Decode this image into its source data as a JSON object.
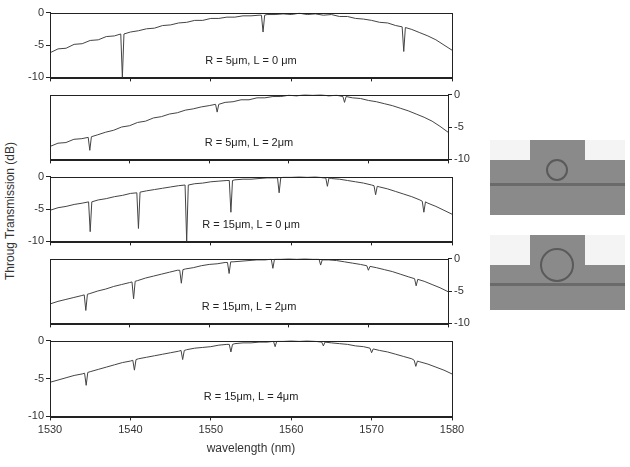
{
  "chart_data": [
    {
      "type": "line",
      "annotation": "R = 5μm, L = 0 μm",
      "x": [
        1530,
        1531,
        1532,
        1533,
        1534,
        1535,
        1536,
        1537,
        1538,
        1538.8,
        1539,
        1539.2,
        1540,
        1541,
        1542,
        1543,
        1544,
        1545,
        1546,
        1547,
        1548,
        1549,
        1550,
        1551,
        1552,
        1553,
        1554,
        1555,
        1556,
        1556.3,
        1556.5,
        1556.7,
        1557,
        1558,
        1559,
        1560,
        1561,
        1562,
        1563,
        1564,
        1565,
        1566,
        1567,
        1568,
        1569,
        1570,
        1571,
        1572,
        1573,
        1573.8,
        1574,
        1574.2,
        1575,
        1576,
        1577,
        1578,
        1579,
        1580
      ],
      "series": [
        {
          "color": "#444444",
          "values": [
            -6.2,
            -5.6,
            -5.5,
            -4.9,
            -4.8,
            -4.3,
            -4.2,
            -3.7,
            -3.6,
            -3.3,
            -10,
            -3.3,
            -3.0,
            -2.8,
            -2.5,
            -2.4,
            -2.0,
            -1.9,
            -1.6,
            -1.5,
            -1.2,
            -1.2,
            -0.9,
            -0.9,
            -0.7,
            -0.7,
            -0.5,
            -0.5,
            -0.4,
            -0.4,
            -3.0,
            -0.4,
            -0.3,
            -0.3,
            -0.2,
            -0.3,
            -0.1,
            -0.3,
            -0.2,
            -0.4,
            -0.3,
            -0.6,
            -0.6,
            -0.9,
            -1.0,
            -1.2,
            -1.5,
            -1.6,
            -2.0,
            -2.2,
            -6.0,
            -2.3,
            -2.6,
            -3.1,
            -3.6,
            -4.2,
            -5.0,
            -5.8
          ]
        }
      ],
      "xlim": [
        1530,
        1580
      ],
      "xticks": [
        1530,
        1540,
        1550,
        1560,
        1570,
        1580
      ],
      "ylim": [
        -10,
        0
      ],
      "yticks": [
        -10,
        -5,
        0
      ],
      "tick_labels": "y"
    },
    {
      "type": "line",
      "annotation": "R = 5μm, L = 2μm",
      "x": [
        1530,
        1531,
        1532,
        1533,
        1534,
        1534.8,
        1535,
        1535.2,
        1536,
        1537,
        1538,
        1539,
        1540,
        1541,
        1542,
        1543,
        1544,
        1545,
        1546,
        1547,
        1548,
        1549,
        1550,
        1550.8,
        1551,
        1551.2,
        1552,
        1553,
        1554,
        1555,
        1556,
        1557,
        1558,
        1559,
        1560,
        1561,
        1562,
        1563,
        1564,
        1565,
        1566,
        1566.8,
        1567,
        1567.2,
        1568,
        1569,
        1570,
        1571,
        1572,
        1573,
        1574,
        1575,
        1576,
        1577,
        1578,
        1579,
        1580
      ],
      "series": [
        {
          "color": "#444444",
          "axis": "y2",
          "values": [
            -8.0,
            -7.5,
            -7.4,
            -6.9,
            -6.8,
            -6.6,
            -8.6,
            -6.5,
            -6.2,
            -5.8,
            -5.5,
            -5.0,
            -4.8,
            -4.3,
            -4.1,
            -3.6,
            -3.4,
            -3.0,
            -2.8,
            -2.4,
            -2.2,
            -1.9,
            -1.7,
            -1.5,
            -2.7,
            -1.5,
            -1.2,
            -1.1,
            -0.8,
            -0.8,
            -0.5,
            -0.5,
            -0.3,
            -0.3,
            -0.1,
            -0.2,
            0.0,
            -0.1,
            0.0,
            -0.2,
            -0.1,
            -0.3,
            -1.2,
            -0.3,
            -0.5,
            -0.6,
            -0.9,
            -1.1,
            -1.4,
            -1.7,
            -2.1,
            -2.5,
            -3.0,
            -3.5,
            -4.1,
            -4.9,
            -5.8
          ]
        }
      ],
      "xlim": [
        1530,
        1580
      ],
      "xticks": [
        1530,
        1540,
        1550,
        1560,
        1570,
        1580
      ],
      "y2lim": [
        -10,
        0
      ],
      "y2ticks": [
        -10,
        -5,
        0
      ],
      "tick_labels": "y"
    },
    {
      "type": "line",
      "annotation": "R = 15μm, L = 0 μm",
      "ylabel": "Throug Transmission (dB)",
      "x": [
        1530,
        1531,
        1532,
        1533,
        1534,
        1534.8,
        1535,
        1535.2,
        1536,
        1537,
        1538,
        1539,
        1540,
        1540.8,
        1541,
        1541.2,
        1542,
        1543,
        1544,
        1545,
        1546,
        1546.8,
        1547,
        1547.2,
        1548,
        1549,
        1550,
        1551,
        1552,
        1552.3,
        1552.5,
        1552.7,
        1553,
        1554,
        1555,
        1556,
        1557,
        1558,
        1558.3,
        1558.5,
        1558.7,
        1559,
        1560,
        1561,
        1562,
        1563,
        1564,
        1564.3,
        1564.5,
        1564.7,
        1565,
        1566,
        1567,
        1568,
        1569,
        1570,
        1570.3,
        1570.5,
        1570.7,
        1571,
        1572,
        1573,
        1574,
        1575,
        1576,
        1576.3,
        1576.5,
        1576.7,
        1577,
        1578,
        1579,
        1580
      ],
      "series": [
        {
          "color": "#444444",
          "values": [
            -5.2,
            -4.8,
            -4.6,
            -4.3,
            -4.1,
            -3.9,
            -8.5,
            -3.9,
            -3.6,
            -3.4,
            -3.1,
            -2.9,
            -2.6,
            -2.5,
            -8.0,
            -2.4,
            -2.2,
            -2.0,
            -1.8,
            -1.6,
            -1.4,
            -1.3,
            -10.0,
            -1.3,
            -1.1,
            -1.0,
            -0.8,
            -0.7,
            -0.6,
            -0.6,
            -5.5,
            -0.6,
            -0.5,
            -0.4,
            -0.4,
            -0.3,
            -0.2,
            -0.2,
            -0.2,
            -2.5,
            -0.2,
            -0.1,
            -0.1,
            0.0,
            -0.1,
            0.0,
            -0.2,
            -0.2,
            -1.5,
            -0.2,
            -0.3,
            -0.4,
            -0.6,
            -0.8,
            -1.0,
            -1.3,
            -1.4,
            -2.8,
            -1.5,
            -1.6,
            -1.9,
            -2.3,
            -2.7,
            -3.1,
            -3.6,
            -3.8,
            -5.5,
            -3.9,
            -4.1,
            -4.6,
            -5.2,
            -5.8
          ]
        }
      ],
      "xlim": [
        1530,
        1580
      ],
      "xticks": [
        1530,
        1540,
        1550,
        1560,
        1570,
        1580
      ],
      "ylim": [
        -10,
        0
      ],
      "yticks": [
        -10,
        -5,
        0
      ],
      "tick_labels": "y"
    },
    {
      "type": "line",
      "annotation": "R = 15μm, L = 2μm",
      "x": [
        1530,
        1531,
        1532,
        1533,
        1534,
        1534.3,
        1534.5,
        1534.7,
        1535,
        1536,
        1537,
        1538,
        1539,
        1540,
        1540.3,
        1540.5,
        1540.7,
        1541,
        1542,
        1543,
        1544,
        1545,
        1546,
        1546.3,
        1546.5,
        1546.7,
        1547,
        1548,
        1549,
        1550,
        1551,
        1552,
        1552.3,
        1552.5,
        1552.7,
        1553,
        1554,
        1555,
        1556,
        1557,
        1557.8,
        1558,
        1558.2,
        1559,
        1560,
        1561,
        1562,
        1563,
        1563.8,
        1564,
        1564.2,
        1565,
        1566,
        1567,
        1568,
        1569,
        1569.8,
        1570,
        1570.2,
        1571,
        1572,
        1573,
        1574,
        1575,
        1575.8,
        1576,
        1576.2,
        1577,
        1578,
        1579,
        1580
      ],
      "series": [
        {
          "color": "#444444",
          "axis": "y2",
          "values": [
            -7.0,
            -6.6,
            -6.3,
            -6.0,
            -5.7,
            -5.6,
            -8.0,
            -5.5,
            -5.4,
            -5.0,
            -4.7,
            -4.3,
            -4.0,
            -3.7,
            -3.6,
            -6.2,
            -3.5,
            -3.4,
            -3.0,
            -2.7,
            -2.4,
            -2.1,
            -1.8,
            -1.8,
            -3.8,
            -1.7,
            -1.6,
            -1.4,
            -1.1,
            -0.9,
            -0.8,
            -0.6,
            -0.6,
            -2.3,
            -0.5,
            -0.5,
            -0.4,
            -0.3,
            -0.2,
            -0.2,
            -0.1,
            -1.5,
            -0.1,
            -0.1,
            0.0,
            -0.1,
            0.0,
            -0.1,
            -0.1,
            -1.0,
            -0.2,
            -0.2,
            -0.3,
            -0.5,
            -0.7,
            -0.9,
            -1.1,
            -1.8,
            -1.2,
            -1.4,
            -1.7,
            -2.0,
            -2.4,
            -2.8,
            -3.1,
            -4.2,
            -3.2,
            -3.5,
            -4.0,
            -4.5,
            -5.1
          ]
        }
      ],
      "xlim": [
        1530,
        1580
      ],
      "xticks": [
        1530,
        1540,
        1550,
        1560,
        1570,
        1580
      ],
      "y2lim": [
        -10,
        0
      ],
      "y2ticks": [
        -10,
        -5,
        0
      ],
      "tick_labels": "y"
    },
    {
      "type": "line",
      "annotation": "R = 15μm, L = 4μm",
      "xlabel": "wavelength (nm)",
      "x": [
        1530,
        1531,
        1532,
        1533,
        1534,
        1534.3,
        1534.5,
        1534.7,
        1535,
        1536,
        1537,
        1538,
        1539,
        1540,
        1540.3,
        1540.5,
        1540.7,
        1541,
        1542,
        1543,
        1544,
        1545,
        1546,
        1546.3,
        1546.5,
        1546.7,
        1547,
        1548,
        1549,
        1550,
        1551,
        1552,
        1552.3,
        1552.5,
        1552.7,
        1553,
        1554,
        1555,
        1556,
        1557,
        1557.8,
        1558,
        1558.2,
        1559,
        1560,
        1561,
        1562,
        1563,
        1563.8,
        1564,
        1564.2,
        1565,
        1566,
        1567,
        1568,
        1569,
        1569.8,
        1570,
        1570.2,
        1571,
        1572,
        1573,
        1574,
        1575,
        1575.3,
        1575.5,
        1575.7,
        1576,
        1577,
        1578,
        1579,
        1580
      ],
      "series": [
        {
          "color": "#444444",
          "values": [
            -5.5,
            -5.2,
            -4.9,
            -4.6,
            -4.4,
            -4.3,
            -5.9,
            -4.2,
            -4.1,
            -3.8,
            -3.5,
            -3.2,
            -2.9,
            -2.7,
            -2.6,
            -3.9,
            -2.5,
            -2.4,
            -2.2,
            -2.0,
            -1.8,
            -1.6,
            -1.4,
            -1.3,
            -2.5,
            -1.3,
            -1.2,
            -1.0,
            -0.9,
            -0.8,
            -0.6,
            -0.5,
            -0.5,
            -1.5,
            -0.5,
            -0.4,
            -0.3,
            -0.3,
            -0.2,
            -0.2,
            -0.1,
            -0.8,
            -0.1,
            -0.1,
            0.0,
            -0.1,
            0.0,
            -0.1,
            -0.2,
            -0.7,
            -0.2,
            -0.3,
            -0.4,
            -0.5,
            -0.7,
            -0.8,
            -1.0,
            -1.6,
            -1.1,
            -1.3,
            -1.5,
            -1.8,
            -2.1,
            -2.4,
            -2.6,
            -3.4,
            -2.7,
            -2.8,
            -3.1,
            -3.5,
            -3.9,
            -4.4
          ]
        }
      ],
      "xlim": [
        1530,
        1580
      ],
      "xticks": [
        1530,
        1540,
        1550,
        1560,
        1570,
        1580
      ],
      "ylim": [
        -10,
        0
      ],
      "yticks": [
        -10,
        -5,
        0
      ]
    }
  ]
}
